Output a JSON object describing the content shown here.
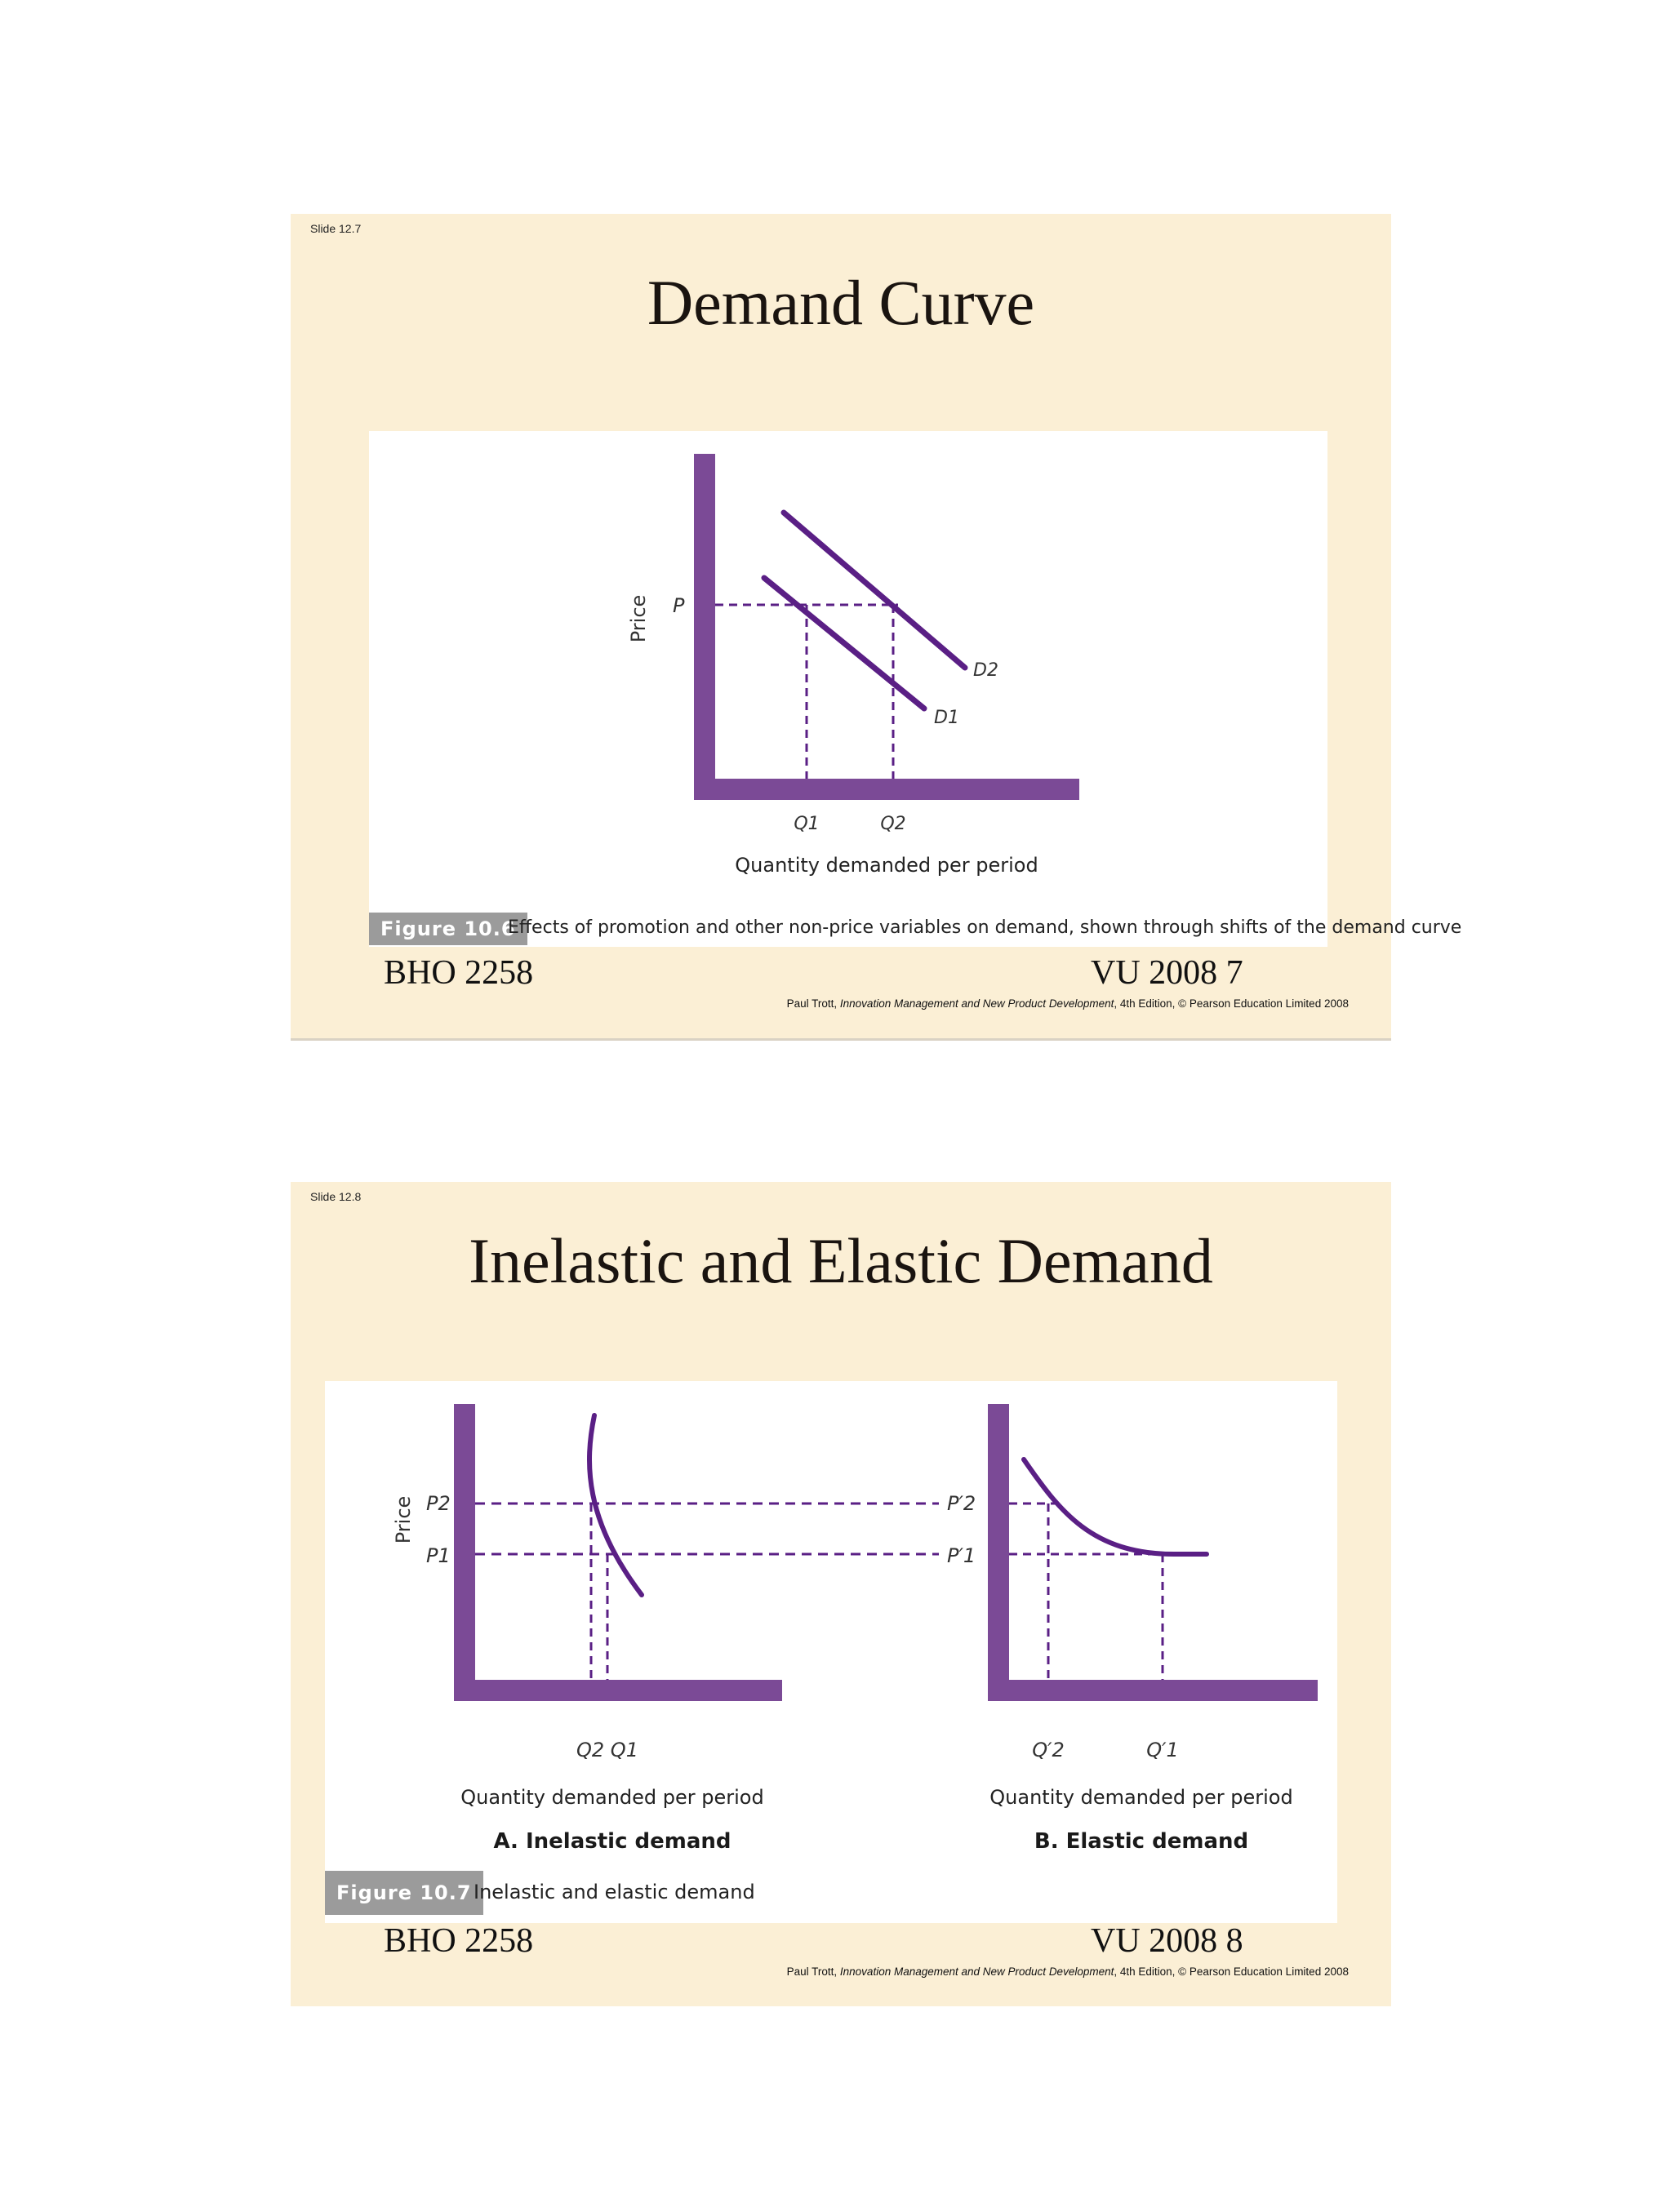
{
  "slides": [
    {
      "slide_label": "Slide 12.7",
      "title": "Demand Curve",
      "figure_label": "Figure 10.6",
      "figure_caption": "Effects of promotion and other non-price variables on demand, shown through shifts of the demand curve",
      "footer_left": "BHO 2258",
      "footer_right": "VU 2008  7",
      "credit_prefix": "Paul Trott, ",
      "credit_book": "Innovation Management and New Product Development",
      "credit_edition": ", 4th Edition, © Pearson Education Limited 2008",
      "chart": {
        "y_axis_label": "Price",
        "x_axis_label": "Quantity demanded per period",
        "price_label": "P",
        "q1_label": "Q1",
        "q2_label": "Q2",
        "d1_label": "D1",
        "d2_label": "D2"
      }
    },
    {
      "slide_label": "Slide 12.8",
      "title": "Inelastic and Elastic Demand",
      "figure_label": "Figure 10.7",
      "figure_caption": "Inelastic and elastic demand",
      "footer_left": "BHO 2258",
      "footer_right": "VU 2008  8",
      "credit_prefix": "Paul Trott, ",
      "credit_book": "Innovation Management and New Product Development",
      "credit_edition": ", 4th Edition, © Pearson Education Limited 2008",
      "chart": {
        "y_axis_label": "Price",
        "left": {
          "p2_label": "P2",
          "p1_label": "P1",
          "q_labels": "Q2 Q1",
          "x_axis_label": "Quantity demanded per period",
          "panel_title": "A. Inelastic demand"
        },
        "right": {
          "p2_label": "P′2",
          "p1_label": "P′1",
          "q2_label": "Q′2",
          "q1_label": "Q′1",
          "x_axis_label": "Quantity demanded per period",
          "panel_title": "B. Elastic demand"
        }
      }
    }
  ],
  "colors": {
    "axis": "#7b4a96",
    "curve": "#5a1f85",
    "dash": "#5a1f85",
    "slide_bg": "#fbefd5",
    "figure_label_bg": "#9b9b9b"
  }
}
